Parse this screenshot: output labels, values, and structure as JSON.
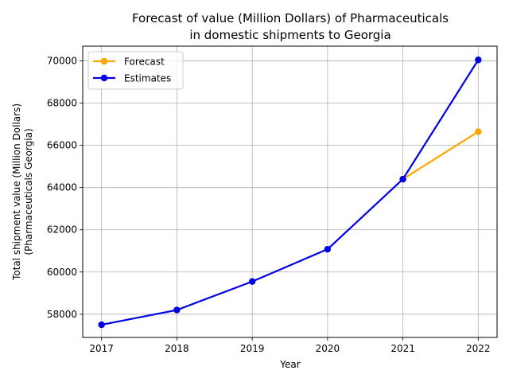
{
  "chart_data": {
    "type": "line",
    "title_lines": [
      "Forecast of value (Million Dollars) of Pharmaceuticals",
      "in domestic shipments to Georgia"
    ],
    "xlabel": "Year",
    "ylabel_lines": [
      "Total shipment value (Million Dollars)",
      "(Pharmaceuticals Georgia)"
    ],
    "x": [
      2017,
      2018,
      2019,
      2020,
      2021,
      2022
    ],
    "xlim": [
      2016.75,
      2022.25
    ],
    "ylim": [
      56900,
      70700
    ],
    "yticks": [
      58000,
      60000,
      62000,
      64000,
      66000,
      68000,
      70000
    ],
    "grid": true,
    "legend_position": "upper-left",
    "series": [
      {
        "name": "Forecast",
        "color": "#ffa500",
        "x": [
          2021,
          2022
        ],
        "values": [
          64400,
          66650
        ]
      },
      {
        "name": "Estimates",
        "color": "#0000e6",
        "x": [
          2017,
          2018,
          2019,
          2020,
          2021,
          2022
        ],
        "values": [
          57500,
          58200,
          59550,
          61080,
          64400,
          70050
        ]
      }
    ]
  }
}
